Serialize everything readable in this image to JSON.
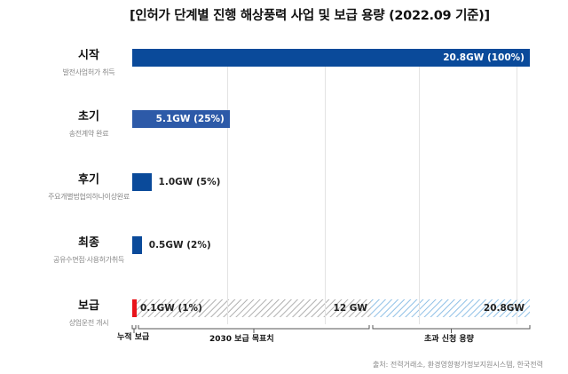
{
  "chart_data": {
    "type": "bar",
    "orientation": "horizontal",
    "title": "[인허가 단계별 진행 해상풍력 사업 및 보급 용량 (2022.09 기준)]",
    "unit": "GW",
    "xlim": [
      0,
      20.8
    ],
    "grid": true,
    "categories": [
      {
        "name": "시작",
        "sub": "발전사업허가 취득",
        "value": 20.8,
        "label": "20.8GW (100%)"
      },
      {
        "name": "초기",
        "sub": "송전계약 완료",
        "value": 5.1,
        "label": "5.1GW (25%)"
      },
      {
        "name": "후기",
        "sub": "주요개별법협의하나이상완료",
        "value": 1.0,
        "label": "1.0GW (5%)"
      },
      {
        "name": "최종",
        "sub": "공유수면점·사용허가취득",
        "value": 0.5,
        "label": "0.5GW (2%)"
      }
    ],
    "deployment": {
      "name": "보급",
      "sub": "상업운전 개시",
      "cumulative": {
        "value": 0.1,
        "label": "0.1GW (1%)",
        "bracket": "누적 보급"
      },
      "target": {
        "value": 12,
        "label": "12 GW",
        "bracket": "2030 보급 목표치"
      },
      "excess": {
        "value": 20.8,
        "label": "20.8GW",
        "bracket": "초과 신청 용량"
      }
    },
    "colors": {
      "bar": "#0a4a9a",
      "bar_light": "#2d5aa8",
      "cumulative": "#e8141b",
      "target_hatch": "#b0b0b0",
      "excess_hatch": "#8fc0e6"
    },
    "source": "출처: 전력거래소, 환경영향평가정보지원시스템, 한국전력"
  }
}
